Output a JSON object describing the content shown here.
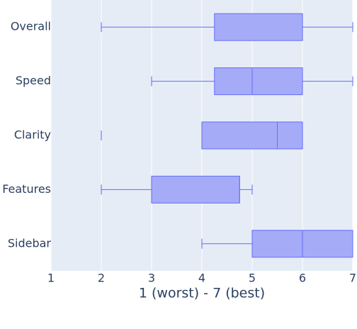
{
  "chart_data": {
    "type": "box",
    "orientation": "horizontal",
    "xlabel": "1 (worst) - 7 (best)",
    "categories": [
      "Overall",
      "Speed",
      "Clarity",
      "Features",
      "Sidebar"
    ],
    "boxes": [
      {
        "min": 2,
        "q1": 4.25,
        "median": 6,
        "q3": 6,
        "max": 7
      },
      {
        "min": 3,
        "q1": 4.25,
        "median": 5,
        "q3": 6,
        "max": 7
      },
      {
        "min": 4,
        "q1": 4,
        "median": 5.5,
        "q3": 6,
        "max": 6,
        "outliers": [
          2
        ]
      },
      {
        "min": 2,
        "q1": 3,
        "median": 4.75,
        "q3": 4.75,
        "max": 5
      },
      {
        "min": 4,
        "q1": 5,
        "median": 6,
        "q3": 7,
        "max": 7
      }
    ],
    "color": "#636efa",
    "fill": "#a5abf7",
    "background": "#e5ecf6",
    "xlim": [
      1,
      7
    ],
    "xticks": [
      1,
      2,
      3,
      4,
      5,
      6,
      7
    ],
    "grid": true
  }
}
